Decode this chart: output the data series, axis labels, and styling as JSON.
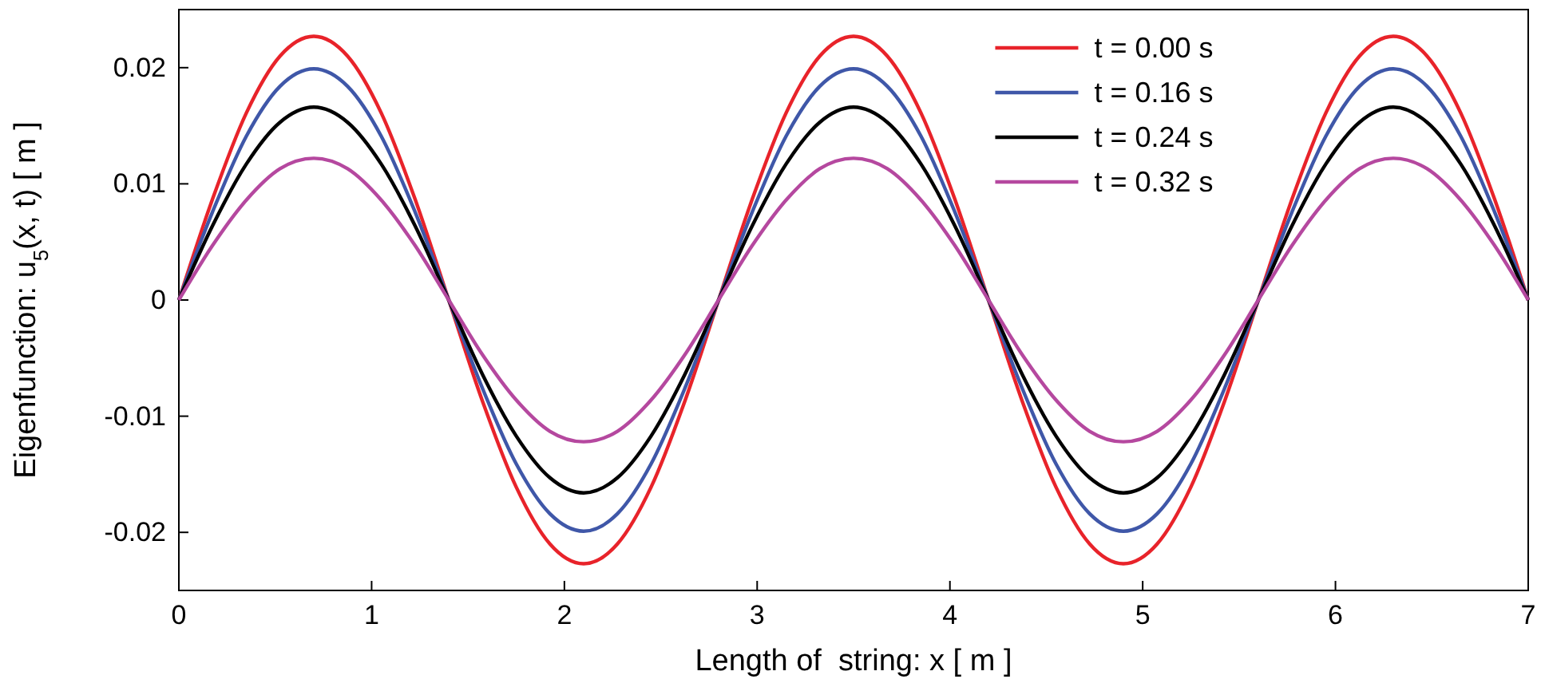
{
  "chart_data": {
    "type": "line",
    "xlabel": "Length of  string: x [ m ]",
    "ylabel": "Eigenfunction: u$_{5}$(x, t) [ m ]",
    "x": [
      0,
      0.175,
      0.35,
      0.525,
      0.7,
      0.875,
      1.05,
      1.225,
      1.4,
      1.575,
      1.75,
      1.925,
      2.1,
      2.275,
      2.45,
      2.625,
      2.8,
      2.975,
      3.15,
      3.325,
      3.5,
      3.675,
      3.85,
      4.025,
      4.2,
      4.375,
      4.55,
      4.725,
      4.9,
      5.075,
      5.25,
      5.425,
      5.6,
      5.775,
      5.95,
      6.125,
      6.3,
      6.475,
      6.65,
      6.825,
      7
    ],
    "xlim": [
      0,
      7
    ],
    "xticks": [
      0,
      1,
      2,
      3,
      4,
      5,
      6,
      7
    ],
    "ylim": [
      -0.025,
      0.025
    ],
    "yticks": [
      -0.02,
      -0.01,
      0,
      0.01,
      0.02
    ],
    "legend": "top right",
    "line_style": "solid",
    "marker": "none",
    "grid": false,
    "series": [
      {
        "name": "t = 0.00 s",
        "color": "#e8232a",
        "values": [
          0,
          0.0087,
          0.0161,
          0.021,
          0.0227,
          0.021,
          0.0161,
          0.0087,
          0,
          -0.0087,
          -0.0161,
          -0.021,
          -0.0227,
          -0.021,
          -0.0161,
          -0.0087,
          0,
          0.0087,
          0.0161,
          0.021,
          0.0227,
          0.021,
          0.0161,
          0.0087,
          0,
          -0.0087,
          -0.0161,
          -0.021,
          -0.0227,
          -0.021,
          -0.0161,
          -0.0087,
          0,
          0.0087,
          0.0161,
          0.021,
          0.0227,
          0.021,
          0.0161,
          0.0087,
          0
        ]
      },
      {
        "name": "t = 0.16 s",
        "color": "#3f57a8",
        "values": [
          0,
          0.0076,
          0.0141,
          0.0184,
          0.0199,
          0.0184,
          0.0141,
          0.0076,
          0,
          -0.0076,
          -0.0141,
          -0.0184,
          -0.0199,
          -0.0184,
          -0.0141,
          -0.0076,
          0,
          0.0076,
          0.0141,
          0.0184,
          0.0199,
          0.0184,
          0.0141,
          0.0076,
          0,
          -0.0076,
          -0.0141,
          -0.0184,
          -0.0199,
          -0.0184,
          -0.0141,
          -0.0076,
          0,
          0.0076,
          0.0141,
          0.0184,
          0.0199,
          0.0184,
          0.0141,
          0.0076,
          0
        ]
      },
      {
        "name": "t = 0.24 s",
        "color": "#000000",
        "values": [
          0,
          0.0064,
          0.0117,
          0.0153,
          0.0166,
          0.0153,
          0.0117,
          0.0064,
          0,
          -0.0064,
          -0.0117,
          -0.0153,
          -0.0166,
          -0.0153,
          -0.0117,
          -0.0064,
          0,
          0.0064,
          0.0117,
          0.0153,
          0.0166,
          0.0153,
          0.0117,
          0.0064,
          0,
          -0.0064,
          -0.0117,
          -0.0153,
          -0.0166,
          -0.0153,
          -0.0117,
          -0.0064,
          0,
          0.0064,
          0.0117,
          0.0153,
          0.0166,
          0.0153,
          0.0117,
          0.0064,
          0
        ]
      },
      {
        "name": "t = 0.32 s",
        "color": "#b5489f",
        "values": [
          0,
          0.0047,
          0.0086,
          0.0113,
          0.0122,
          0.0113,
          0.0086,
          0.0047,
          0,
          -0.0047,
          -0.0086,
          -0.0113,
          -0.0122,
          -0.0113,
          -0.0086,
          -0.0047,
          0,
          0.0047,
          0.0086,
          0.0113,
          0.0122,
          0.0113,
          0.0086,
          0.0047,
          0,
          -0.0047,
          -0.0086,
          -0.0113,
          -0.0122,
          -0.0113,
          -0.0086,
          -0.0047,
          0,
          0.0047,
          0.0086,
          0.0113,
          0.0122,
          0.0113,
          0.0086,
          0.0047,
          0
        ]
      }
    ]
  }
}
